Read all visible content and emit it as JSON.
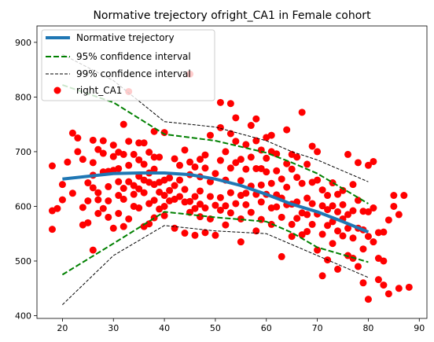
{
  "chart_data": {
    "type": "scatter",
    "title": "Normative trejectory ofright_CA1 in Female cohort",
    "xlabel": "",
    "ylabel": "",
    "xlim": [
      15,
      91.5
    ],
    "ylim": [
      395,
      930
    ],
    "xticks": [
      20,
      30,
      40,
      50,
      60,
      70,
      80,
      90
    ],
    "yticks": [
      400,
      500,
      600,
      700,
      800,
      900
    ],
    "grid": false,
    "legend_position": "top-left",
    "legend": [
      {
        "label": "Normative trejectory",
        "style": "thick-line",
        "color": "#1f77b4"
      },
      {
        "label": "95% confidence interval",
        "style": "dashed-line",
        "color": "#008000"
      },
      {
        "label": "99% confidence interval",
        "style": "dashed-thin",
        "color": "#000000"
      },
      {
        "label": "right_CA1",
        "style": "marker",
        "color": "#ff0000"
      }
    ],
    "series": [
      {
        "name": "Normative trejectory",
        "kind": "line",
        "color": "#1f77b4",
        "x": [
          20,
          25,
          30,
          35,
          40,
          45,
          50,
          55,
          60,
          65,
          70,
          75,
          80
        ],
        "y": [
          650,
          655,
          660,
          661,
          661,
          658,
          650,
          638,
          622,
          604,
          590,
          572,
          553
        ]
      },
      {
        "name": "95% confidence interval",
        "kind": "dashed",
        "color": "#008000",
        "x": [
          20,
          30,
          40,
          50,
          60,
          65,
          70,
          80
        ],
        "y": [
          475,
          532,
          590,
          580,
          572,
          552,
          525,
          498
        ]
      },
      {
        "name": "95% confidence interval",
        "kind": "dashed",
        "color": "#008000",
        "x": [
          20,
          30,
          40,
          50,
          60,
          65,
          70,
          80
        ],
        "y": [
          822,
          790,
          732,
          720,
          698,
          680,
          660,
          605
        ]
      },
      {
        "name": "99% confidence interval",
        "kind": "dashed-thin",
        "color": "#000000",
        "x": [
          20,
          30,
          40,
          50,
          60,
          65,
          70,
          80
        ],
        "y": [
          420,
          510,
          565,
          555,
          550,
          530,
          510,
          470
        ]
      },
      {
        "name": "99% confidence interval",
        "kind": "dashed-thin",
        "color": "#000000",
        "x": [
          20,
          30,
          40,
          50,
          60,
          65,
          70,
          80
        ],
        "y": [
          878,
          830,
          755,
          745,
          720,
          700,
          685,
          645
        ]
      },
      {
        "name": "right_CA1",
        "kind": "scatter",
        "color": "#ff0000",
        "points": [
          [
            18,
            674
          ],
          [
            18,
            592
          ],
          [
            18,
            558
          ],
          [
            19,
            596
          ],
          [
            20,
            640
          ],
          [
            20,
            612
          ],
          [
            21,
            681
          ],
          [
            22,
            734
          ],
          [
            22,
            624
          ],
          [
            23,
            725
          ],
          [
            23,
            700
          ],
          [
            24,
            686
          ],
          [
            24,
            566
          ],
          [
            24,
            598
          ],
          [
            25,
            610
          ],
          [
            25,
            643
          ],
          [
            25,
            570
          ],
          [
            26,
            721
          ],
          [
            26,
            680
          ],
          [
            26,
            520
          ],
          [
            26,
            657
          ],
          [
            26,
            634
          ],
          [
            27,
            704
          ],
          [
            27,
            587
          ],
          [
            27,
            625
          ],
          [
            27,
            612
          ],
          [
            28,
            697
          ],
          [
            28,
            720
          ],
          [
            28,
            596
          ],
          [
            28,
            663
          ],
          [
            29,
            664
          ],
          [
            29,
            636
          ],
          [
            29,
            610
          ],
          [
            29,
            580
          ],
          [
            30,
            691
          ],
          [
            30,
            666
          ],
          [
            30,
            712
          ],
          [
            30,
            560
          ],
          [
            31,
            699
          ],
          [
            31,
            620
          ],
          [
            31,
            645
          ],
          [
            31,
            669
          ],
          [
            31,
            587
          ],
          [
            32,
            750
          ],
          [
            32,
            695
          ],
          [
            32,
            633
          ],
          [
            32,
            613
          ],
          [
            32,
            563
          ],
          [
            33,
            810
          ],
          [
            33,
            719
          ],
          [
            33,
            675
          ],
          [
            33,
            645
          ],
          [
            33,
            577
          ],
          [
            34,
            695
          ],
          [
            34,
            638
          ],
          [
            34,
            622
          ],
          [
            34,
            600
          ],
          [
            35,
            716
          ],
          [
            35,
            685
          ],
          [
            35,
            655
          ],
          [
            35,
            632
          ],
          [
            35,
            597
          ],
          [
            36,
            716
          ],
          [
            36,
            677
          ],
          [
            36,
            648
          ],
          [
            36,
            625
          ],
          [
            36,
            563
          ],
          [
            37,
            699
          ],
          [
            37,
            661
          ],
          [
            37,
            644
          ],
          [
            37,
            605
          ],
          [
            37,
            568
          ],
          [
            38,
            737
          ],
          [
            38,
            690
          ],
          [
            38,
            668
          ],
          [
            38,
            640
          ],
          [
            38,
            611
          ],
          [
            38,
            579
          ],
          [
            39,
            690
          ],
          [
            39,
            644
          ],
          [
            39,
            626
          ],
          [
            39,
            595
          ],
          [
            40,
            735
          ],
          [
            40,
            648
          ],
          [
            40,
            620
          ],
          [
            40,
            600
          ],
          [
            40,
            583
          ],
          [
            41,
            652
          ],
          [
            41,
            629
          ],
          [
            41,
            610
          ],
          [
            42,
            687
          ],
          [
            42,
            638
          ],
          [
            42,
            613
          ],
          [
            42,
            560
          ],
          [
            43,
            675
          ],
          [
            43,
            648
          ],
          [
            43,
            618
          ],
          [
            44,
            703
          ],
          [
            44,
            631
          ],
          [
            44,
            608
          ],
          [
            44,
            551
          ],
          [
            45,
            842
          ],
          [
            45,
            681
          ],
          [
            45,
            658
          ],
          [
            45,
            609
          ],
          [
            45,
            589
          ],
          [
            46,
            672
          ],
          [
            46,
            618
          ],
          [
            46,
            596
          ],
          [
            46,
            547
          ],
          [
            47,
            686
          ],
          [
            47,
            654
          ],
          [
            47,
            628
          ],
          [
            47,
            604
          ],
          [
            47,
            581
          ],
          [
            48,
            694
          ],
          [
            48,
            670
          ],
          [
            48,
            597
          ],
          [
            48,
            552
          ],
          [
            49,
            730
          ],
          [
            49,
            645
          ],
          [
            49,
            618
          ],
          [
            49,
            577
          ],
          [
            50,
            660
          ],
          [
            50,
            602
          ],
          [
            50,
            547
          ],
          [
            51,
            790
          ],
          [
            51,
            744
          ],
          [
            51,
            684
          ],
          [
            51,
            616
          ],
          [
            51,
            593
          ],
          [
            52,
            700
          ],
          [
            52,
            648
          ],
          [
            52,
            601
          ],
          [
            52,
            566
          ],
          [
            53,
            788
          ],
          [
            53,
            733
          ],
          [
            53,
            670
          ],
          [
            53,
            625
          ],
          [
            53,
            588
          ],
          [
            54,
            762
          ],
          [
            54,
            719
          ],
          [
            54,
            680
          ],
          [
            54,
            605
          ],
          [
            55,
            686
          ],
          [
            55,
            647
          ],
          [
            55,
            620
          ],
          [
            55,
            577
          ],
          [
            55,
            535
          ],
          [
            56,
            713
          ],
          [
            56,
            668
          ],
          [
            56,
            624
          ],
          [
            56,
            603
          ],
          [
            57,
            748
          ],
          [
            57,
            690
          ],
          [
            57,
            637
          ],
          [
            57,
            589
          ],
          [
            58,
            760
          ],
          [
            58,
            720
          ],
          [
            58,
            669
          ],
          [
            58,
            622
          ],
          [
            58,
            555
          ],
          [
            59,
            703
          ],
          [
            59,
            669
          ],
          [
            59,
            639
          ],
          [
            59,
            608
          ],
          [
            59,
            576
          ],
          [
            60,
            726
          ],
          [
            60,
            688
          ],
          [
            60,
            663
          ],
          [
            60,
            622
          ],
          [
            61,
            730
          ],
          [
            61,
            700
          ],
          [
            61,
            642
          ],
          [
            61,
            597
          ],
          [
            61,
            567
          ],
          [
            62,
            696
          ],
          [
            62,
            665
          ],
          [
            62,
            621
          ],
          [
            62,
            599
          ],
          [
            63,
            650
          ],
          [
            63,
            615
          ],
          [
            63,
            580
          ],
          [
            63,
            508
          ],
          [
            64,
            740
          ],
          [
            64,
            678
          ],
          [
            64,
            635
          ],
          [
            64,
            603
          ],
          [
            65,
            695
          ],
          [
            65,
            668
          ],
          [
            65,
            604
          ],
          [
            65,
            567
          ],
          [
            65,
            545
          ],
          [
            66,
            690
          ],
          [
            66,
            653
          ],
          [
            66,
            608
          ],
          [
            66,
            578
          ],
          [
            67,
            772
          ],
          [
            67,
            642
          ],
          [
            67,
            588
          ],
          [
            67,
            548
          ],
          [
            68,
            677
          ],
          [
            68,
            615
          ],
          [
            68,
            585
          ],
          [
            68,
            554
          ],
          [
            69,
            710
          ],
          [
            69,
            644
          ],
          [
            69,
            605
          ],
          [
            69,
            567
          ],
          [
            70,
            700
          ],
          [
            70,
            648
          ],
          [
            70,
            586
          ],
          [
            70,
            520
          ],
          [
            71,
            630
          ],
          [
            71,
            601
          ],
          [
            71,
            549
          ],
          [
            71,
            473
          ],
          [
            72,
            620
          ],
          [
            72,
            594
          ],
          [
            72,
            565
          ],
          [
            72,
            502
          ],
          [
            73,
            643
          ],
          [
            73,
            601
          ],
          [
            73,
            572
          ],
          [
            73,
            532
          ],
          [
            74,
            622
          ],
          [
            74,
            590
          ],
          [
            74,
            555
          ],
          [
            74,
            485
          ],
          [
            75,
            629
          ],
          [
            75,
            603
          ],
          [
            75,
            577
          ],
          [
            75,
            546
          ],
          [
            76,
            695
          ],
          [
            76,
            585
          ],
          [
            76,
            560
          ],
          [
            76,
            510
          ],
          [
            77,
            640
          ],
          [
            77,
            592
          ],
          [
            77,
            542
          ],
          [
            77,
            505
          ],
          [
            78,
            680
          ],
          [
            78,
            611
          ],
          [
            78,
            560
          ],
          [
            78,
            490
          ],
          [
            79,
            591
          ],
          [
            79,
            557
          ],
          [
            79,
            522
          ],
          [
            79,
            460
          ],
          [
            80,
            675
          ],
          [
            80,
            590
          ],
          [
            80,
            545
          ],
          [
            80,
            430
          ],
          [
            81,
            682
          ],
          [
            81,
            597
          ],
          [
            81,
            535
          ],
          [
            82,
            552
          ],
          [
            82,
            505
          ],
          [
            82,
            466
          ],
          [
            83,
            553
          ],
          [
            83,
            500
          ],
          [
            83,
            456
          ],
          [
            84,
            575
          ],
          [
            84,
            440
          ],
          [
            85,
            600
          ],
          [
            85,
            620
          ],
          [
            86,
            585
          ],
          [
            86,
            450
          ],
          [
            87,
            620
          ],
          [
            88,
            452
          ]
        ]
      }
    ]
  }
}
